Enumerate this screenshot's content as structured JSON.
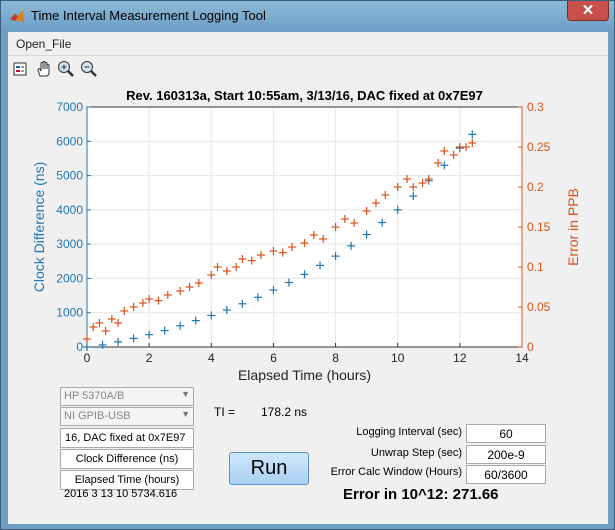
{
  "window": {
    "title": "Time Interval Measurement Logging Tool",
    "close": "✕"
  },
  "menu": {
    "open_file": "Open_File"
  },
  "toolbar": [
    "insert-legend",
    "pan",
    "zoom-in",
    "zoom-out"
  ],
  "colors": {
    "left_axis": "#1f77b4",
    "right_axis": "#d95319",
    "grid": "#e6e6e6"
  },
  "chart_data": {
    "type": "scatter",
    "title": "Rev. 160313a, Start 10:55am, 3/13/16, DAC fixed at 0x7E97",
    "xlabel": "Elapsed Time (hours)",
    "ylabel_left": "Clock Difference (ns)",
    "ylabel_right": "Error in PPB",
    "xlim": [
      0,
      14
    ],
    "ylim_left": [
      0,
      7000
    ],
    "ylim_right": [
      0,
      0.3
    ],
    "x_ticks": [
      "0",
      "2",
      "4",
      "6",
      "8",
      "10",
      "12",
      "14"
    ],
    "y_ticks_left": [
      "0",
      "1000",
      "2000",
      "3000",
      "4000",
      "5000",
      "6000",
      "7000"
    ],
    "y_ticks_right": [
      "0",
      "0.05",
      "0.1",
      "0.15",
      "0.2",
      "0.25",
      "0.3"
    ],
    "grid": "on",
    "series": [
      {
        "axis": "left",
        "marker": "+",
        "color": "#1f77b4",
        "x": [
          0,
          0.5,
          1,
          1.5,
          2,
          2.5,
          3,
          3.5,
          4,
          4.5,
          5,
          5.5,
          6,
          6.5,
          7,
          7.5,
          8,
          8.5,
          9,
          9.5,
          10,
          10.5,
          11,
          11.5,
          12,
          12.4
        ],
        "y": [
          0,
          60,
          150,
          250,
          360,
          480,
          620,
          770,
          920,
          1080,
          1260,
          1450,
          1660,
          1880,
          2120,
          2380,
          2650,
          2950,
          3280,
          3630,
          4000,
          4400,
          4850,
          5300,
          5800,
          6200
        ]
      },
      {
        "axis": "right",
        "marker": "+",
        "color": "#d95319",
        "x": [
          0,
          0.2,
          0.4,
          0.6,
          0.8,
          1.0,
          1.2,
          1.5,
          1.8,
          2.0,
          2.3,
          2.6,
          3.0,
          3.3,
          3.6,
          4.0,
          4.2,
          4.5,
          4.8,
          5.0,
          5.3,
          5.6,
          6.0,
          6.3,
          6.6,
          7.0,
          7.3,
          7.6,
          8.0,
          8.3,
          8.6,
          9.0,
          9.3,
          9.6,
          10.0,
          10.3,
          10.5,
          10.8,
          11.0,
          11.3,
          11.5,
          11.8,
          12.0,
          12.2,
          12.4
        ],
        "y": [
          0.01,
          0.025,
          0.03,
          0.02,
          0.035,
          0.03,
          0.045,
          0.05,
          0.055,
          0.06,
          0.058,
          0.065,
          0.07,
          0.075,
          0.08,
          0.09,
          0.1,
          0.095,
          0.1,
          0.11,
          0.108,
          0.115,
          0.12,
          0.118,
          0.125,
          0.13,
          0.14,
          0.135,
          0.15,
          0.16,
          0.155,
          0.17,
          0.18,
          0.19,
          0.2,
          0.21,
          0.2,
          0.205,
          0.21,
          0.23,
          0.245,
          0.24,
          0.25,
          0.25,
          0.255
        ]
      }
    ]
  },
  "controls": {
    "instrument": "HP 5370A/B",
    "interface": "NI GPIB-USB",
    "title_field": "16, DAC fixed at 0x7E97",
    "ylabel_field": "Clock Difference (ns)",
    "xlabel_field": "Elapsed Time (hours)",
    "datevec": "2016    3    13    10    5734.616",
    "ti_label": "TI =",
    "ti_value": "178.2 ns",
    "run_label": "Run",
    "logging_interval_label": "Logging  Interval (sec)",
    "logging_interval_value": "60",
    "unwrap_step_label": "Unwrap Step (sec)",
    "unwrap_step_value": "200e-9",
    "error_window_label": "Error Calc Window (Hours)",
    "error_window_value": "60/3600",
    "error_result": "Error in 10^12:  271.66"
  }
}
